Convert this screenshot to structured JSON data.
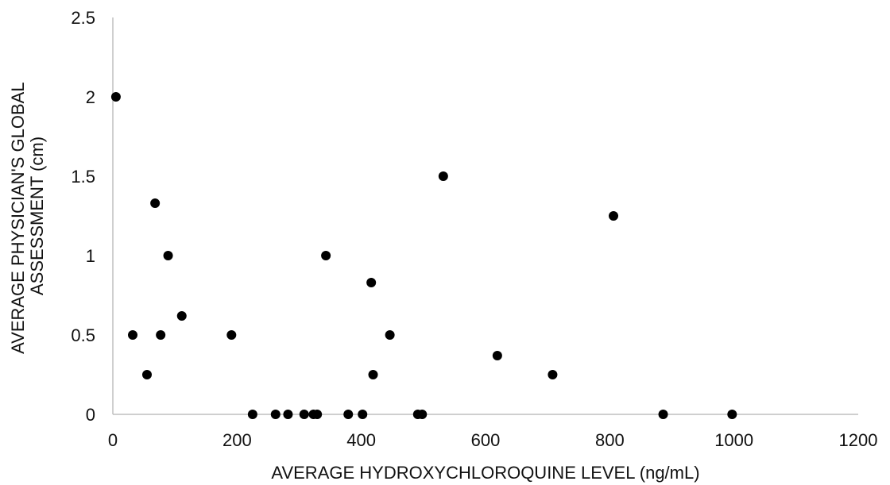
{
  "chart_data": {
    "type": "scatter",
    "xlabel": "AVERAGE HYDROXYCHLOROQUINE LEVEL (ng/mL)",
    "ylabel_lines": [
      "AVERAGE PHYSICIAN'S GLOBAL",
      "ASSESSMENT (cm)"
    ],
    "xlim": [
      0,
      1200
    ],
    "ylim": [
      0,
      2.5
    ],
    "x_ticks": [
      "0",
      "200",
      "400",
      "600",
      "800",
      "1000",
      "1200"
    ],
    "y_ticks": [
      "0",
      "0.5",
      "1",
      "1.5",
      "2",
      "2.5"
    ],
    "grid": false,
    "marker_color": "#000000",
    "axis_color": "#bfbfbf",
    "points": [
      {
        "x": 5,
        "y": 2.0
      },
      {
        "x": 32,
        "y": 0.5
      },
      {
        "x": 55,
        "y": 0.25
      },
      {
        "x": 68,
        "y": 1.33
      },
      {
        "x": 77,
        "y": 0.5
      },
      {
        "x": 89,
        "y": 1.0
      },
      {
        "x": 111,
        "y": 0.62
      },
      {
        "x": 191,
        "y": 0.5
      },
      {
        "x": 225,
        "y": 0.0
      },
      {
        "x": 262,
        "y": 0.0
      },
      {
        "x": 282,
        "y": 0.0
      },
      {
        "x": 308,
        "y": 0.0
      },
      {
        "x": 323,
        "y": 0.0
      },
      {
        "x": 329,
        "y": 0.0
      },
      {
        "x": 343,
        "y": 1.0
      },
      {
        "x": 379,
        "y": 0.0
      },
      {
        "x": 402,
        "y": 0.0
      },
      {
        "x": 416,
        "y": 0.83
      },
      {
        "x": 419,
        "y": 0.25
      },
      {
        "x": 446,
        "y": 0.5
      },
      {
        "x": 491,
        "y": 0.0
      },
      {
        "x": 498,
        "y": 0.0
      },
      {
        "x": 532,
        "y": 1.5
      },
      {
        "x": 619,
        "y": 0.37
      },
      {
        "x": 708,
        "y": 0.25
      },
      {
        "x": 806,
        "y": 1.25
      },
      {
        "x": 886,
        "y": 0.0
      },
      {
        "x": 997,
        "y": 0.0
      }
    ]
  }
}
